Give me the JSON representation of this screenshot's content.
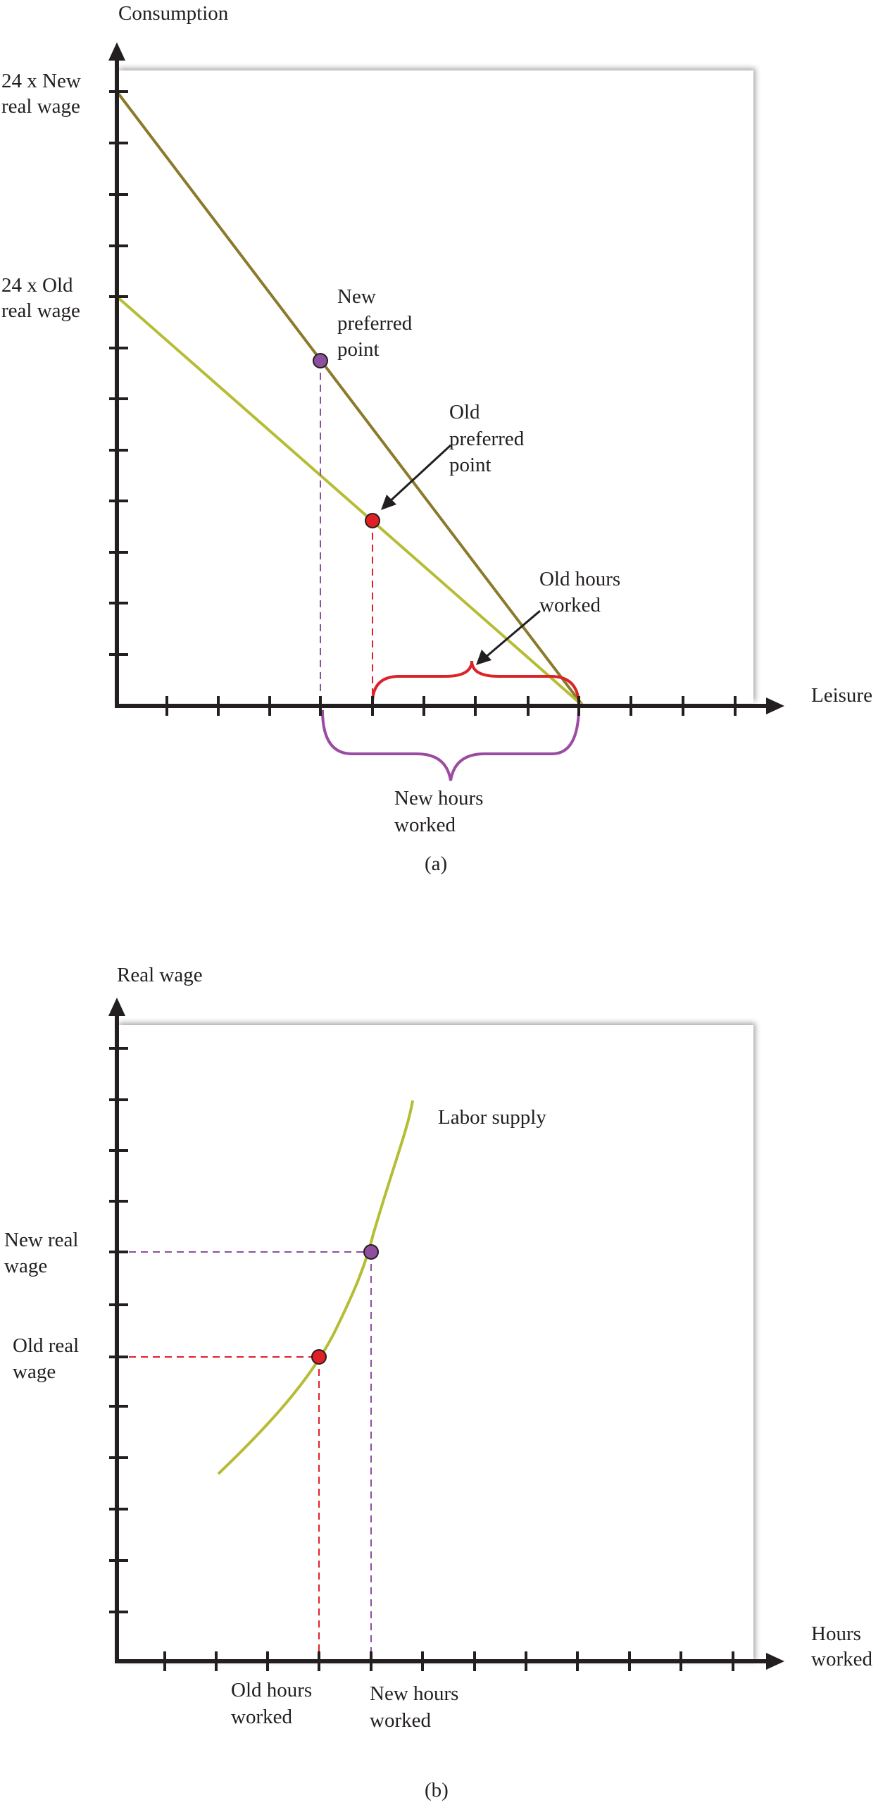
{
  "panel_a": {
    "y_axis_label": "Consumption",
    "x_axis_label": "Leisure",
    "y_label_new_line1": "24 x New",
    "y_label_new_line2": "real wage",
    "y_label_old_line1": "24 x Old",
    "y_label_old_line2": "real wage",
    "new_point_line1": "New",
    "new_point_line2": "preferred",
    "new_point_line3": "point",
    "old_point_line1": "Old",
    "old_point_line2": "preferred",
    "old_point_line3": "point",
    "old_hours_line1": "Old hours",
    "old_hours_line2": "worked",
    "new_hours_line1": "New hours",
    "new_hours_line2": "worked",
    "caption": "(a)"
  },
  "panel_b": {
    "y_axis_label": "Real wage",
    "x_axis_label_line1": "Hours",
    "x_axis_label_line2": "worked",
    "curve_label": "Labor supply",
    "new_wage_line1": "New real",
    "new_wage_line2": "wage",
    "old_wage_line1": "Old real",
    "old_wage_line2": "wage",
    "old_hours_line1": "Old hours",
    "old_hours_line2": "worked",
    "new_hours_line1": "New hours",
    "new_hours_line2": "worked",
    "caption": "(b)"
  },
  "colors": {
    "axis": "#231f20",
    "new_budget_line": "#8b7a2a",
    "old_budget_line": "#b5bd34",
    "labor_supply": "#b5bd34",
    "new_point": "#8e4fa0",
    "old_point": "#e02026",
    "new_guides": "#8e4fa0",
    "old_guides": "#e02026",
    "new_hours_brace": "#9c4ca0",
    "old_hours_brace": "#d9242a"
  }
}
